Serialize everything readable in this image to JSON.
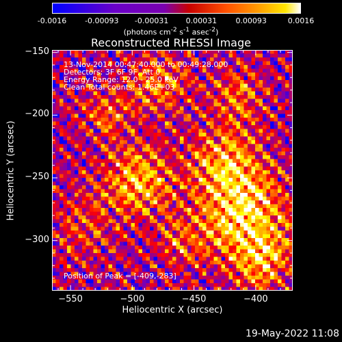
{
  "colorbar": {
    "ticks": [
      "-0.0016",
      "-0.00093",
      "-0.00031",
      "0.00031",
      "0.00093",
      "0.0016"
    ],
    "unit_label": "(photons cm-2 s-1 asec-2)"
  },
  "chart_data": {
    "type": "heatmap",
    "title": "Reconstructed RHESSI Image",
    "xlabel": "Heliocentric X (arcsec)",
    "ylabel": "Heliocentric Y (arcsec)",
    "xlim": [
      -565,
      -370
    ],
    "ylim": [
      -340,
      -148
    ],
    "xticks": [
      -550,
      -500,
      -450,
      -400
    ],
    "yticks": [
      -150,
      -200,
      -250,
      -300
    ],
    "colorbar_range": [
      -0.0016,
      0.0016
    ],
    "colormap": [
      "#0000ff",
      "#7a00b4",
      "#ff0000",
      "#ff9000",
      "#ffff00",
      "#ffffff"
    ],
    "peak": [
      -409,
      -283
    ],
    "info": [
      "13-Nov-2014 00:47:40.000 to 00:49:28.000",
      "Detectors: 3F 6F 9F, Att 0",
      "Energy Range: 12.0 - 25.0 keV",
      "Clean    Total counts: 1.46E+03"
    ],
    "peak_label": "Position of Peak = [-409,-283]"
  },
  "footer": {
    "timestamp": "19-May-2022 11:08"
  }
}
